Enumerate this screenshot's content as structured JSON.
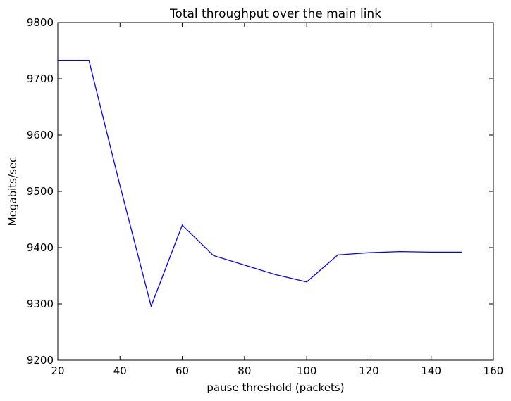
{
  "chart_data": {
    "type": "line",
    "title": "Total throughput over the main link",
    "xlabel": "pause threshold (packets)",
    "ylabel": "Megabits/sec",
    "xlim": [
      20,
      160
    ],
    "ylim": [
      9200,
      9800
    ],
    "xticks": [
      20,
      40,
      60,
      80,
      100,
      120,
      140,
      160
    ],
    "yticks": [
      9200,
      9300,
      9400,
      9500,
      9600,
      9700,
      9800
    ],
    "grid": false,
    "series": [
      {
        "color": "#0000ff",
        "x": [
          20,
          30,
          40,
          50,
          60,
          70,
          80,
          90,
          100,
          110,
          120,
          130,
          140,
          150
        ],
        "y": [
          9733,
          9733,
          9510,
          9296,
          9440,
          9386,
          9369,
          9352,
          9339,
          9387,
          9391,
          9393,
          9392,
          9392
        ]
      }
    ]
  }
}
